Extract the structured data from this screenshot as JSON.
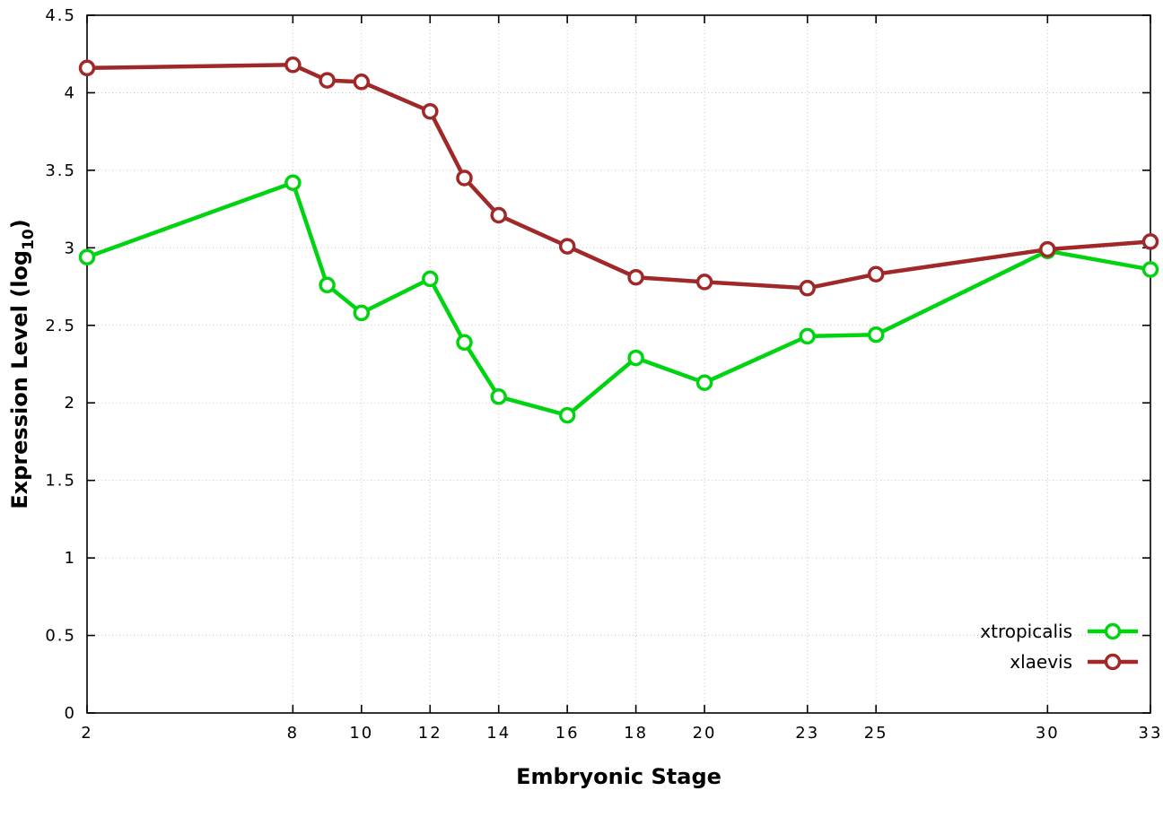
{
  "chart_data": {
    "type": "line",
    "title": "",
    "xlabel": "Embryonic Stage",
    "ylabel": "Expression Level (log10)",
    "ylabel_parts": {
      "pre": "Expression Level (log",
      "sub": "10",
      "post": ")"
    },
    "xlim": [
      2,
      33
    ],
    "ylim": [
      0,
      4.5
    ],
    "x_ticks": [
      2,
      8,
      10,
      12,
      14,
      16,
      18,
      20,
      23,
      25,
      30,
      33
    ],
    "y_ticks": [
      0,
      0.5,
      1,
      1.5,
      2,
      2.5,
      3,
      3.5,
      4,
      4.5
    ],
    "grid": true,
    "legend_position": "inside-bottom-right",
    "x": [
      2,
      8,
      9,
      10,
      12,
      13,
      14,
      16,
      18,
      20,
      23,
      25,
      30,
      33
    ],
    "series": [
      {
        "name": "xtropicalis",
        "color": "#00d411",
        "values": [
          2.94,
          3.42,
          2.76,
          2.58,
          2.8,
          2.39,
          2.04,
          1.92,
          2.29,
          2.13,
          2.43,
          2.44,
          2.98,
          2.86
        ]
      },
      {
        "name": "xlaevis",
        "color": "#a02828",
        "values": [
          4.16,
          4.18,
          4.08,
          4.07,
          3.88,
          3.45,
          3.21,
          3.01,
          2.81,
          2.78,
          2.74,
          2.83,
          2.99,
          3.04
        ]
      }
    ]
  }
}
